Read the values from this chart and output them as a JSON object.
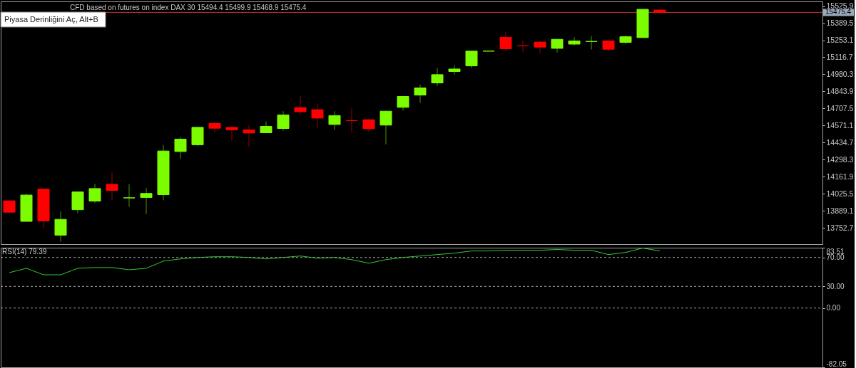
{
  "chart_data": [
    {
      "type": "candlestick",
      "title": "CFD based on futures on index DAX 30  15494.4 15499.9 15468.9 15475.4",
      "categories": [
        null,
        null,
        null,
        null,
        null,
        null,
        null,
        null,
        null,
        null,
        null,
        null,
        null,
        null,
        null,
        null,
        null,
        null,
        null,
        null,
        null,
        null,
        null,
        null,
        null,
        null,
        null,
        null,
        null,
        null,
        null,
        null,
        null,
        null,
        null,
        null,
        null,
        null,
        null,
        null,
        null,
        null,
        null,
        null,
        null,
        null,
        null,
        null
      ],
      "ohlc": [
        [
          13970,
          13970,
          13879,
          13879
        ],
        [
          13806,
          14027,
          13803,
          14016
        ],
        [
          14064,
          14066,
          13753,
          13810
        ],
        [
          13696,
          13885,
          13645,
          13822
        ],
        [
          13899,
          14043,
          13873,
          14041
        ],
        [
          13968,
          14106,
          13954,
          14068
        ],
        [
          14102,
          14199,
          13976,
          14053
        ],
        [
          13994,
          14102,
          13923,
          13994
        ],
        [
          13997,
          14072,
          13865,
          14029
        ],
        [
          14019,
          14417,
          13974,
          14368
        ],
        [
          14364,
          14480,
          14307,
          14463
        ],
        [
          14418,
          14561,
          14410,
          14557
        ],
        [
          14588,
          14601,
          14516,
          14550
        ],
        [
          14557,
          14560,
          14449,
          14537
        ],
        [
          14537,
          14573,
          14402,
          14512
        ],
        [
          14514,
          14605,
          14512,
          14565
        ],
        [
          14548,
          14686,
          14531,
          14656
        ],
        [
          14715,
          14810,
          14658,
          14682
        ],
        [
          14698,
          14749,
          14556,
          14631
        ],
        [
          14580,
          14686,
          14535,
          14651
        ],
        [
          14611,
          14709,
          14516,
          14611
        ],
        [
          14618,
          14622,
          14520,
          14546
        ],
        [
          14575,
          14690,
          14421,
          14686
        ],
        [
          14717,
          14804,
          14690,
          14804
        ],
        [
          14815,
          14898,
          14753,
          14872
        ],
        [
          14912,
          15033,
          14887,
          14978
        ],
        [
          15003,
          15052,
          14976,
          15023
        ],
        [
          15048,
          15168,
          15031,
          15166
        ],
        [
          15166,
          15166,
          15166,
          15166
        ],
        [
          15276,
          15319,
          15166,
          15185
        ],
        [
          15208,
          15247,
          15160,
          15208
        ],
        [
          15238,
          15251,
          15147,
          15198
        ],
        [
          15188,
          15264,
          15154,
          15260
        ],
        [
          15222,
          15278,
          15211,
          15247
        ],
        [
          15243,
          15287,
          15179,
          15243
        ],
        [
          15247,
          15260,
          15166,
          15181
        ],
        [
          15236,
          15291,
          15221,
          15281
        ],
        [
          15274,
          15504,
          15274,
          15500
        ],
        [
          15494.4,
          15499.9,
          15468.9,
          15475.4
        ],
        null,
        null,
        null,
        null,
        null,
        null,
        null,
        null,
        null
      ],
      "colors": [
        "#ff0000",
        "#7cfc00",
        "#ff0000",
        "#7cfc00",
        "#7cfc00",
        "#7cfc00",
        "#ff0000",
        "#7cfc00",
        "#7cfc00",
        "#7cfc00",
        "#7cfc00",
        "#7cfc00",
        "#ff0000",
        "#ff0000",
        "#ff0000",
        "#7cfc00",
        "#7cfc00",
        "#ff0000",
        "#ff0000",
        "#7cfc00",
        "#ff0000",
        "#ff0000",
        "#7cfc00",
        "#7cfc00",
        "#7cfc00",
        "#7cfc00",
        "#7cfc00",
        "#7cfc00",
        "#7cfc00",
        "#ff0000",
        "#ff0000",
        "#ff0000",
        "#7cfc00",
        "#7cfc00",
        "#7cfc00",
        "#ff0000",
        "#7cfc00",
        "#7cfc00",
        "#ff0000",
        null,
        null,
        null,
        null,
        null,
        null,
        null,
        null,
        null
      ],
      "ylim": [
        13624,
        15563
      ],
      "yticks": [
        15525.9,
        15389.5,
        15253.1,
        15116.7,
        14980.3,
        14843.9,
        14707.5,
        14571.1,
        14434.7,
        14298.3,
        14161.9,
        14025.5,
        13889.1,
        13752.7
      ],
      "ref_lines": [
        {
          "axis": "y",
          "value": 15475.4,
          "label": "15475.4",
          "color": "#c83232"
        }
      ],
      "annotations": [
        "Piyasa Derinliğini Aç, Alt+B"
      ],
      "tick_labels": "y"
    },
    {
      "type": "line",
      "title": "RSI(14) 79.39",
      "categories": [
        null,
        null,
        null,
        null,
        null,
        null,
        null,
        null,
        null,
        null,
        null,
        null,
        null,
        null,
        null,
        null,
        null,
        null,
        null,
        null,
        null,
        null,
        null,
        null,
        null,
        null,
        null,
        null,
        null,
        null,
        null,
        null,
        null,
        null,
        null,
        null,
        null,
        null,
        null,
        null,
        null,
        null,
        null,
        null,
        null,
        null,
        null,
        null
      ],
      "series": [
        {
          "color": "#32cd32",
          "values": [
            49,
            55,
            46,
            46,
            55,
            56,
            56,
            53,
            55,
            65,
            68,
            70,
            71,
            71,
            70,
            68,
            70,
            72,
            69,
            70,
            67,
            62,
            67,
            70,
            72,
            74,
            76,
            79,
            79,
            80,
            80,
            80,
            81,
            80,
            80,
            74,
            77,
            83,
            79,
            null,
            null,
            null,
            null,
            null,
            null,
            null,
            null,
            null
          ]
        }
      ],
      "ylim": [
        -82.05,
        83.51
      ],
      "yticks": [
        83.51,
        {
          "value": 70,
          "label": "70.00"
        },
        {
          "value": 30,
          "label": "30.00"
        },
        {
          "value": 0,
          "label": "0.00"
        },
        -82.05
      ],
      "ref_lines": [
        {
          "axis": "y",
          "value": 70,
          "color": "#a0a0a0",
          "line_style": "dashed"
        },
        {
          "axis": "y",
          "value": 30,
          "color": "#a0a0a0",
          "line_style": "dashed"
        },
        {
          "axis": "y",
          "value": 0,
          "color": "#a0a0a0",
          "line_style": "dashed"
        }
      ],
      "tick_labels": "y"
    }
  ]
}
